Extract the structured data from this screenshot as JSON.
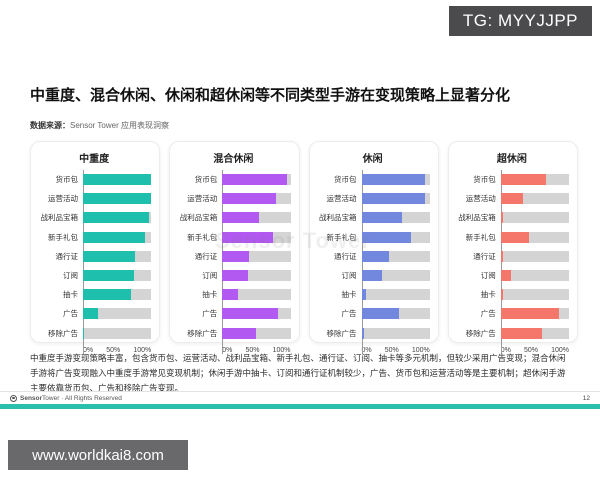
{
  "overlays": {
    "tg_badge": "TG: MYYJJPP",
    "website_badge": "www.worldkai8.com"
  },
  "header": {
    "title": "中重度、混合休闲、休闲和超休闲等不同类型手游在变现策略上显著分化",
    "source_label": "数据来源：",
    "source_value": "Sensor Tower 应用表现洞察"
  },
  "chart_data": {
    "type": "bar",
    "orientation": "horizontal",
    "categories": [
      "货币包",
      "运营活动",
      "战利品宝箱",
      "新手礼包",
      "通行证",
      "订阅",
      "抽卡",
      "广告",
      "移除广告"
    ],
    "x_ticks": [
      "0%",
      "50%",
      "100%"
    ],
    "xlim": [
      0,
      100
    ],
    "grid": false,
    "track_color": "#d4d4d4",
    "panels": [
      {
        "title": "中重度",
        "color": "#1fbfad",
        "values": [
          100,
          99,
          97,
          91,
          76,
          75,
          70,
          22,
          1
        ]
      },
      {
        "title": "混合休闲",
        "color": "#b159f0",
        "values": [
          95,
          79,
          54,
          74,
          39,
          38,
          23,
          82,
          50
        ]
      },
      {
        "title": "休闲",
        "color": "#7288df",
        "values": [
          93,
          93,
          60,
          73,
          41,
          30,
          7,
          55,
          3
        ]
      },
      {
        "title": "超休闲",
        "color": "#f5766b",
        "values": [
          67,
          33,
          3,
          41,
          4,
          15,
          3,
          86,
          61
        ]
      }
    ]
  },
  "watermark": "Sensor Tower",
  "summary": "中重度手游变现策略丰富，包含货币包、运营活动、战利品宝箱、新手礼包、通行证、订阅、抽卡等多元机制，但较少采用广告变现；混合休闲手游将广告变现融入中重度手游常见变现机制；休闲手游中抽卡、订阅和通行证机制较少，广告、货币包和运营活动等是主要机制；超休闲手游主要依靠货币包、广告和移除广告变现。",
  "footer": {
    "brand_bold": "Sensor",
    "brand_rest": "Tower · All Rights Reserved",
    "page_number": "12"
  }
}
